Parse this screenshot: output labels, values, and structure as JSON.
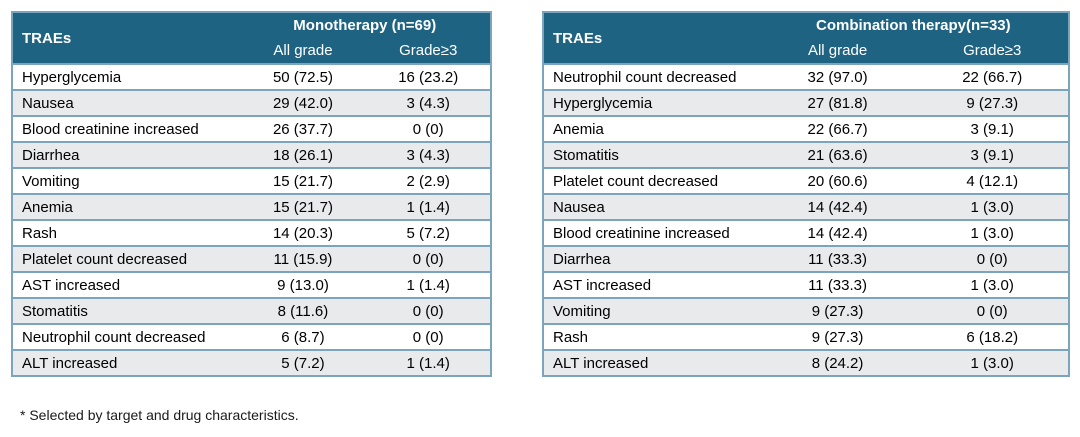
{
  "colors": {
    "header_bg": "#1f6383",
    "header_text": "#ffffff",
    "row_stripe": "#e8eaeb",
    "row_white": "#ffffff",
    "border": "#7ba4bf",
    "body_text": "#000000"
  },
  "footnote": "* Selected by target and drug characteristics.",
  "tables": [
    {
      "id": "monotherapy",
      "header": {
        "row_label": "TRAEs",
        "group_label": "Monotherapy (n=69)",
        "columns": [
          "All grade",
          "Grade≥3"
        ]
      },
      "rows": [
        {
          "label": "Hyperglycemia",
          "all_grade": "50 (72.5)",
          "grade3": "16 (23.2)"
        },
        {
          "label": "Nausea",
          "all_grade": "29 (42.0)",
          "grade3": "3 (4.3)"
        },
        {
          "label": "Blood creatinine increased",
          "all_grade": "26 (37.7)",
          "grade3": "0 (0)"
        },
        {
          "label": "Diarrhea",
          "all_grade": "18 (26.1)",
          "grade3": "3 (4.3)"
        },
        {
          "label": "Vomiting",
          "all_grade": "15 (21.7)",
          "grade3": "2 (2.9)"
        },
        {
          "label": "Anemia",
          "all_grade": "15 (21.7)",
          "grade3": "1 (1.4)"
        },
        {
          "label": "Rash",
          "all_grade": "14 (20.3)",
          "grade3": "5 (7.2)"
        },
        {
          "label": "Platelet count decreased",
          "all_grade": "11 (15.9)",
          "grade3": "0 (0)"
        },
        {
          "label": "AST increased",
          "all_grade": "9 (13.0)",
          "grade3": "1 (1.4)"
        },
        {
          "label": "Stomatitis",
          "all_grade": "8 (11.6)",
          "grade3": "0 (0)"
        },
        {
          "label": "Neutrophil count decreased",
          "all_grade": "6 (8.7)",
          "grade3": "0 (0)"
        },
        {
          "label": "ALT increased",
          "all_grade": "5 (7.2)",
          "grade3": "1 (1.4)"
        }
      ]
    },
    {
      "id": "combination",
      "header": {
        "row_label": "TRAEs",
        "group_label": "Combination therapy(n=33)",
        "columns": [
          "All grade",
          "Grade≥3"
        ]
      },
      "rows": [
        {
          "label": "Neutrophil count decreased",
          "all_grade": "32 (97.0)",
          "grade3": "22 (66.7)"
        },
        {
          "label": "Hyperglycemia",
          "all_grade": "27 (81.8)",
          "grade3": "9 (27.3)"
        },
        {
          "label": "Anemia",
          "all_grade": "22 (66.7)",
          "grade3": "3 (9.1)"
        },
        {
          "label": "Stomatitis",
          "all_grade": "21 (63.6)",
          "grade3": "3 (9.1)"
        },
        {
          "label": "Platelet count decreased",
          "all_grade": "20 (60.6)",
          "grade3": "4 (12.1)"
        },
        {
          "label": "Nausea",
          "all_grade": "14 (42.4)",
          "grade3": "1 (3.0)"
        },
        {
          "label": "Blood creatinine increased",
          "all_grade": "14 (42.4)",
          "grade3": "1 (3.0)"
        },
        {
          "label": "Diarrhea",
          "all_grade": "11 (33.3)",
          "grade3": "0 (0)"
        },
        {
          "label": "AST increased",
          "all_grade": "11 (33.3)",
          "grade3": "1 (3.0)"
        },
        {
          "label": "Vomiting",
          "all_grade": "9 (27.3)",
          "grade3": "0 (0)"
        },
        {
          "label": "Rash",
          "all_grade": "9 (27.3)",
          "grade3": "6 (18.2)"
        },
        {
          "label": "ALT increased",
          "all_grade": "8 (24.2)",
          "grade3": "1 (3.0)"
        }
      ]
    }
  ],
  "chart_data": [
    {
      "type": "table",
      "title": "Monotherapy (n=69)",
      "columns": [
        "TRAEs",
        "All grade",
        "Grade≥3"
      ],
      "rows": [
        [
          "Hyperglycemia",
          "50 (72.5)",
          "16 (23.2)"
        ],
        [
          "Nausea",
          "29 (42.0)",
          "3 (4.3)"
        ],
        [
          "Blood creatinine increased",
          "26 (37.7)",
          "0 (0)"
        ],
        [
          "Diarrhea",
          "18 (26.1)",
          "3 (4.3)"
        ],
        [
          "Vomiting",
          "15 (21.7)",
          "2 (2.9)"
        ],
        [
          "Anemia",
          "15 (21.7)",
          "1 (1.4)"
        ],
        [
          "Rash",
          "14 (20.3)",
          "5 (7.2)"
        ],
        [
          "Platelet count decreased",
          "11 (15.9)",
          "0 (0)"
        ],
        [
          "AST increased",
          "9 (13.0)",
          "1 (1.4)"
        ],
        [
          "Stomatitis",
          "8 (11.6)",
          "0 (0)"
        ],
        [
          "Neutrophil count decreased",
          "6 (8.7)",
          "0 (0)"
        ],
        [
          "ALT increased",
          "5 (7.2)",
          "1 (1.4)"
        ]
      ],
      "annotation": "* Selected by target and drug characteristics."
    },
    {
      "type": "table",
      "title": "Combination therapy(n=33)",
      "columns": [
        "TRAEs",
        "All grade",
        "Grade≥3"
      ],
      "rows": [
        [
          "Neutrophil count decreased",
          "32 (97.0)",
          "22 (66.7)"
        ],
        [
          "Hyperglycemia",
          "27 (81.8)",
          "9 (27.3)"
        ],
        [
          "Anemia",
          "22 (66.7)",
          "3 (9.1)"
        ],
        [
          "Stomatitis",
          "21 (63.6)",
          "3 (9.1)"
        ],
        [
          "Platelet count decreased",
          "20 (60.6)",
          "4 (12.1)"
        ],
        [
          "Nausea",
          "14 (42.4)",
          "1 (3.0)"
        ],
        [
          "Blood creatinine increased",
          "14 (42.4)",
          "1 (3.0)"
        ],
        [
          "Diarrhea",
          "11 (33.3)",
          "0 (0)"
        ],
        [
          "AST increased",
          "11 (33.3)",
          "1 (3.0)"
        ],
        [
          "Vomiting",
          "9 (27.3)",
          "0 (0)"
        ],
        [
          "Rash",
          "9 (27.3)",
          "6 (18.2)"
        ],
        [
          "ALT increased",
          "8 (24.2)",
          "1 (3.0)"
        ]
      ]
    }
  ]
}
